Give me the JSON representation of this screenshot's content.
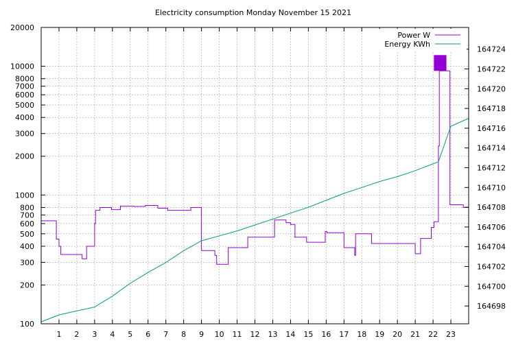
{
  "chart_data": {
    "type": "line",
    "title": "Electricity consumption Monday November 15 2021",
    "xlabel": "",
    "ylabel": "",
    "y2label": "",
    "xlim": [
      0,
      24
    ],
    "ylim": [
      100,
      20000
    ],
    "yscale": "log",
    "y2lim": [
      164696.2,
      164726.2
    ],
    "grid": true,
    "legend": "top-right",
    "x_ticks": [
      "1",
      "2",
      "3",
      "4",
      "5",
      "6",
      "7",
      "8",
      "9",
      "10",
      "11",
      "12",
      "13",
      "14",
      "15",
      "16",
      "17",
      "18",
      "19",
      "20",
      "21",
      "22",
      "23"
    ],
    "y_ticks": [
      "100",
      "200",
      "300",
      "400",
      "500",
      "600",
      "700",
      "800",
      "1000",
      "2000",
      "3000",
      "4000",
      "5000",
      "6000",
      "7000",
      "8000",
      "10000",
      "20000"
    ],
    "y2_ticks": [
      "164698",
      "164700",
      "164702",
      "164704",
      "164706",
      "164708",
      "164710",
      "164712",
      "164714",
      "164716",
      "164718",
      "164720",
      "164722",
      "164724"
    ],
    "series": [
      {
        "name": "Power W",
        "axis": "y",
        "color": "#9400d3",
        "x": [
          0,
          0.7,
          0.7,
          0.85,
          0.85,
          1.0,
          1.0,
          1.1,
          1.1,
          1.35,
          1.35,
          2.3,
          2.3,
          2.45,
          2.45,
          2.55,
          2.55,
          3.0,
          3.0,
          3.05,
          3.05,
          3.3,
          3.3,
          3.95,
          3.95,
          4.45,
          4.45,
          5.2,
          5.2,
          5.85,
          5.85,
          6.55,
          6.55,
          7.1,
          7.1,
          7.75,
          7.75,
          8.4,
          8.4,
          9.0,
          9.0,
          9.75,
          9.75,
          9.85,
          9.85,
          10.5,
          10.5,
          11.0,
          11.0,
          11.6,
          11.6,
          12.8,
          12.8,
          13.1,
          13.1,
          13.75,
          13.75,
          14.0,
          14.0,
          14.25,
          14.25,
          14.2,
          14.2,
          14.9,
          14.9,
          15.95,
          15.95,
          16.05,
          16.05,
          17.0,
          17.0,
          17.55,
          17.55,
          17.6,
          17.6,
          17.65,
          17.65,
          18.55,
          18.55,
          21.0,
          21.0,
          21.3,
          21.3,
          21.9,
          21.9,
          22.05,
          22.05,
          22.3,
          22.3,
          22.35,
          22.35,
          22.95,
          22.95,
          23.4,
          23.4,
          23.7,
          23.7,
          24
        ],
        "values": [
          630,
          630,
          630,
          630,
          455,
          455,
          400,
          400,
          345,
          345,
          345,
          345,
          320,
          320,
          320,
          320,
          400,
          400,
          600,
          600,
          760,
          760,
          800,
          800,
          770,
          770,
          820,
          820,
          815,
          815,
          830,
          830,
          790,
          790,
          760,
          760,
          760,
          760,
          800,
          800,
          370,
          370,
          340,
          340,
          290,
          290,
          390,
          390,
          390,
          390,
          470,
          470,
          470,
          470,
          640,
          640,
          610,
          610,
          590,
          590,
          470,
          470,
          470,
          470,
          430,
          430,
          520,
          520,
          510,
          510,
          390,
          390,
          390,
          390,
          340,
          340,
          500,
          500,
          420,
          420,
          350,
          350,
          460,
          460,
          560,
          560,
          620,
          620,
          2400,
          2400,
          9200,
          9200,
          840,
          840,
          840,
          840,
          800,
          800
        ]
      },
      {
        "name": "Energy KWh",
        "axis": "y2",
        "color": "#009e73",
        "x": [
          0,
          1,
          2,
          3,
          4,
          5,
          6,
          7,
          8,
          9,
          10,
          11,
          12,
          13,
          14,
          15,
          16,
          17,
          18,
          19,
          20,
          21,
          22.3,
          23,
          24
        ],
        "values": [
          164696.4,
          164697.1,
          164697.5,
          164697.9,
          164699.0,
          164700.3,
          164701.4,
          164702.4,
          164703.6,
          164704.6,
          164705.1,
          164705.6,
          164706.2,
          164706.8,
          164707.4,
          164708.0,
          164708.7,
          164709.4,
          164710.0,
          164710.6,
          164711.1,
          164711.7,
          164712.6,
          164716.2,
          164717.0
        ]
      }
    ],
    "band": {
      "x": [
        22.05,
        22.75
      ],
      "range": [
        9200,
        12200
      ],
      "color": "#9400d3"
    }
  }
}
